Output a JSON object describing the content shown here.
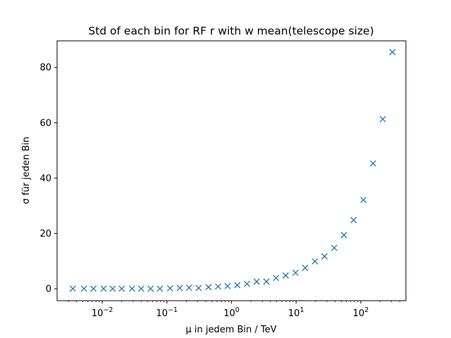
{
  "chart_data": {
    "type": "scatter",
    "title": "Std of each bin for RF r with w mean(telescope size)",
    "xlabel": "μ in jedem Bin / TeV",
    "ylabel": "σ für jeden Bin",
    "xscale": "log",
    "xlim": [
      0.002,
      500
    ],
    "ylim": [
      -4.3,
      89.6
    ],
    "xticks": [
      {
        "value": 0.01,
        "base": "10",
        "exp": "−2"
      },
      {
        "value": 0.1,
        "base": "10",
        "exp": "−1"
      },
      {
        "value": 1,
        "base": "10",
        "exp": "0"
      },
      {
        "value": 10,
        "base": "10",
        "exp": "1"
      },
      {
        "value": 100,
        "base": "10",
        "exp": "2"
      }
    ],
    "yticks": [
      {
        "value": 0,
        "label": "0"
      },
      {
        "value": 20,
        "label": "20"
      },
      {
        "value": 40,
        "label": "40"
      },
      {
        "value": 60,
        "label": "60"
      },
      {
        "value": 80,
        "label": "80"
      }
    ],
    "marker": "x",
    "grid": false,
    "color": "#1f77b4",
    "x": [
      0.0035,
      0.0052,
      0.0073,
      0.0105,
      0.0145,
      0.02,
      0.029,
      0.04,
      0.056,
      0.078,
      0.112,
      0.158,
      0.22,
      0.31,
      0.44,
      0.62,
      0.87,
      1.23,
      1.74,
      2.45,
      3.47,
      4.9,
      6.9,
      9.8,
      13.8,
      19.5,
      27.5,
      38.9,
      55.0,
      77.6,
      110,
      155,
      219,
      309
    ],
    "y": [
      0.05,
      0.05,
      0.05,
      0.05,
      0.05,
      0.05,
      0.05,
      0.05,
      0.05,
      0.05,
      0.2,
      0.3,
      0.4,
      0.3,
      0.6,
      0.8,
      1.0,
      1.3,
      1.8,
      2.6,
      2.6,
      3.9,
      4.8,
      5.8,
      7.6,
      9.9,
      11.7,
      14.8,
      19.4,
      24.8,
      32.1,
      45.3,
      61.3,
      85.5
    ]
  }
}
